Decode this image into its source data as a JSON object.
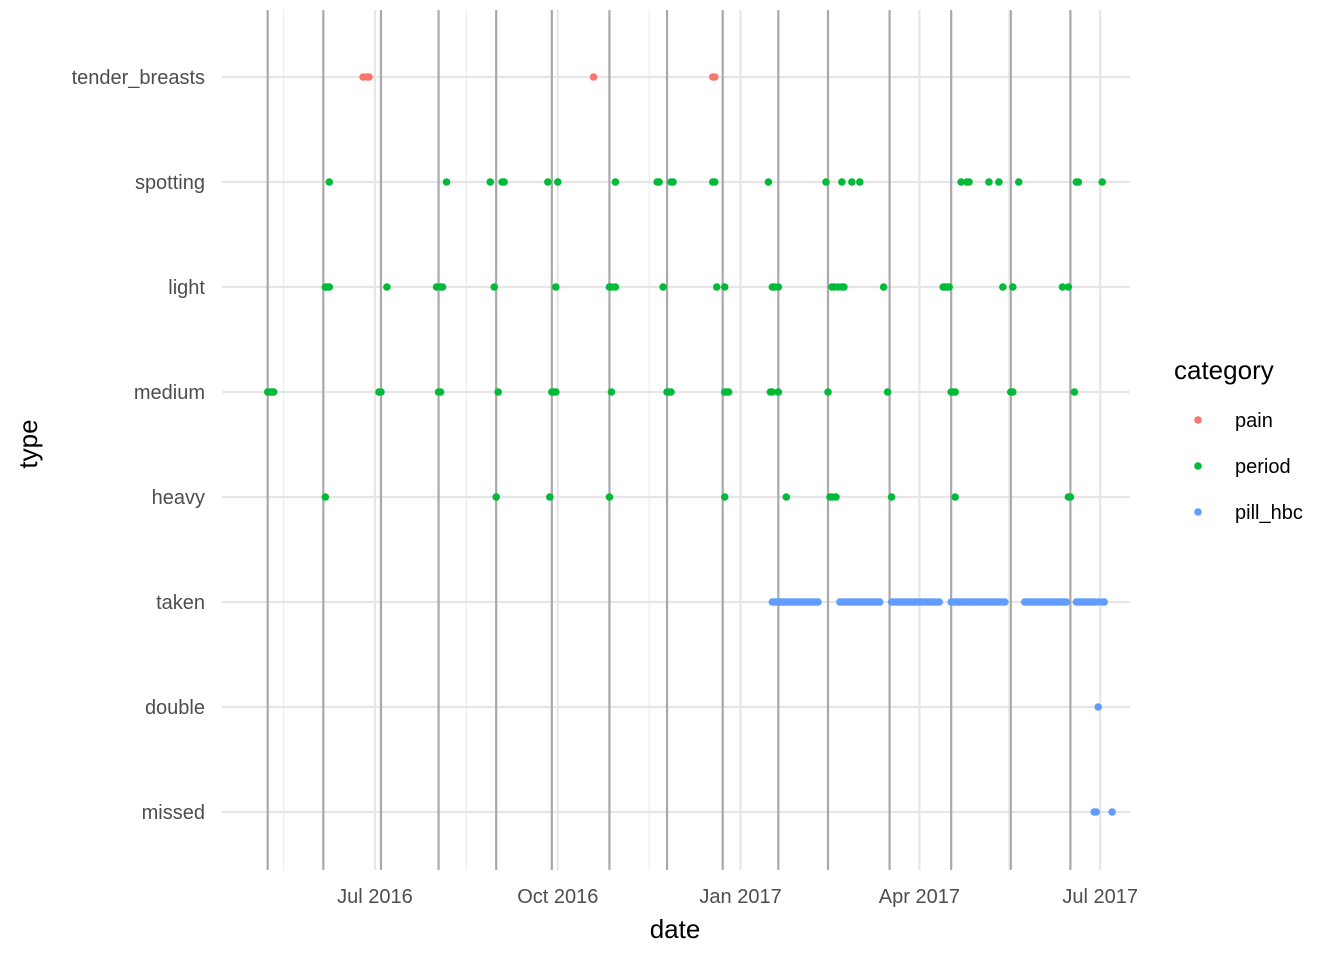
{
  "chart_data": {
    "type": "scatter",
    "xlabel": "date",
    "ylabel": "type",
    "x_ticks": [
      "Jul 2016",
      "Oct 2016",
      "Jan 2017",
      "Apr 2017",
      "Jul 2017"
    ],
    "xlim": [
      "2016-04-15",
      "2017-07-16"
    ],
    "y_categories": [
      "missed",
      "double",
      "taken",
      "heavy",
      "medium",
      "light",
      "spotting",
      "tender_breasts"
    ],
    "grid": true,
    "legend": {
      "title": "category",
      "position": "right",
      "items": [
        {
          "name": "pain",
          "color": "#F8766D"
        },
        {
          "name": "period",
          "color": "#00BA38"
        },
        {
          "name": "pill_hbc",
          "color": "#619CFF"
        }
      ]
    },
    "period_start_lines": [
      "2016-05-08",
      "2016-06-05",
      "2016-07-04",
      "2016-08-02",
      "2016-08-31",
      "2016-09-28",
      "2016-10-27",
      "2016-11-25",
      "2016-12-23",
      "2017-01-20",
      "2017-02-14",
      "2017-03-17",
      "2017-04-17",
      "2017-05-17",
      "2017-06-16"
    ],
    "series": [
      {
        "name": "pain",
        "points": [
          {
            "x": "2016-06-25",
            "y": "tender_breasts"
          },
          {
            "x": "2016-06-27",
            "y": "tender_breasts"
          },
          {
            "x": "2016-06-28",
            "y": "tender_breasts"
          },
          {
            "x": "2016-10-19",
            "y": "tender_breasts"
          },
          {
            "x": "2016-12-18",
            "y": "tender_breasts"
          },
          {
            "x": "2016-12-19",
            "y": "tender_breasts"
          }
        ]
      },
      {
        "name": "period",
        "points": [
          {
            "x": "2016-06-08",
            "y": "spotting"
          },
          {
            "x": "2016-08-06",
            "y": "spotting"
          },
          {
            "x": "2016-08-28",
            "y": "spotting"
          },
          {
            "x": "2016-09-03",
            "y": "spotting"
          },
          {
            "x": "2016-09-04",
            "y": "spotting"
          },
          {
            "x": "2016-09-26",
            "y": "spotting"
          },
          {
            "x": "2016-10-01",
            "y": "spotting"
          },
          {
            "x": "2016-10-30",
            "y": "spotting"
          },
          {
            "x": "2016-11-20",
            "y": "spotting"
          },
          {
            "x": "2016-11-21",
            "y": "spotting"
          },
          {
            "x": "2016-11-27",
            "y": "spotting"
          },
          {
            "x": "2016-11-28",
            "y": "spotting"
          },
          {
            "x": "2016-12-18",
            "y": "spotting"
          },
          {
            "x": "2016-12-19",
            "y": "spotting"
          },
          {
            "x": "2017-01-15",
            "y": "spotting"
          },
          {
            "x": "2017-02-13",
            "y": "spotting"
          },
          {
            "x": "2017-02-21",
            "y": "spotting"
          },
          {
            "x": "2017-02-26",
            "y": "spotting"
          },
          {
            "x": "2017-03-02",
            "y": "spotting"
          },
          {
            "x": "2017-04-22",
            "y": "spotting"
          },
          {
            "x": "2017-04-25",
            "y": "spotting"
          },
          {
            "x": "2017-04-26",
            "y": "spotting"
          },
          {
            "x": "2017-05-06",
            "y": "spotting"
          },
          {
            "x": "2017-05-11",
            "y": "spotting"
          },
          {
            "x": "2017-05-21",
            "y": "spotting"
          },
          {
            "x": "2017-06-19",
            "y": "spotting"
          },
          {
            "x": "2017-06-20",
            "y": "spotting"
          },
          {
            "x": "2017-07-02",
            "y": "spotting"
          },
          {
            "x": "2016-06-06",
            "y": "light"
          },
          {
            "x": "2016-06-07",
            "y": "light"
          },
          {
            "x": "2016-06-08",
            "y": "light"
          },
          {
            "x": "2016-07-07",
            "y": "light"
          },
          {
            "x": "2016-08-01",
            "y": "light"
          },
          {
            "x": "2016-08-03",
            "y": "light"
          },
          {
            "x": "2016-08-04",
            "y": "light"
          },
          {
            "x": "2016-08-30",
            "y": "light"
          },
          {
            "x": "2016-09-30",
            "y": "light"
          },
          {
            "x": "2016-10-27",
            "y": "light"
          },
          {
            "x": "2016-10-28",
            "y": "light"
          },
          {
            "x": "2016-10-30",
            "y": "light"
          },
          {
            "x": "2016-11-23",
            "y": "light"
          },
          {
            "x": "2016-12-20",
            "y": "light"
          },
          {
            "x": "2016-12-24",
            "y": "light"
          },
          {
            "x": "2017-01-17",
            "y": "light"
          },
          {
            "x": "2017-01-18",
            "y": "light"
          },
          {
            "x": "2017-01-20",
            "y": "light"
          },
          {
            "x": "2017-02-16",
            "y": "light"
          },
          {
            "x": "2017-02-17",
            "y": "light"
          },
          {
            "x": "2017-02-19",
            "y": "light"
          },
          {
            "x": "2017-02-21",
            "y": "light"
          },
          {
            "x": "2017-02-22",
            "y": "light"
          },
          {
            "x": "2017-03-14",
            "y": "light"
          },
          {
            "x": "2017-04-13",
            "y": "light"
          },
          {
            "x": "2017-04-14",
            "y": "light"
          },
          {
            "x": "2017-04-15",
            "y": "light"
          },
          {
            "x": "2017-04-16",
            "y": "light"
          },
          {
            "x": "2017-05-13",
            "y": "light"
          },
          {
            "x": "2017-05-18",
            "y": "light"
          },
          {
            "x": "2017-06-12",
            "y": "light"
          },
          {
            "x": "2017-06-15",
            "y": "light"
          },
          {
            "x": "2016-05-08",
            "y": "medium"
          },
          {
            "x": "2016-05-09",
            "y": "medium"
          },
          {
            "x": "2016-05-10",
            "y": "medium"
          },
          {
            "x": "2016-05-11",
            "y": "medium"
          },
          {
            "x": "2016-07-03",
            "y": "medium"
          },
          {
            "x": "2016-07-04",
            "y": "medium"
          },
          {
            "x": "2016-08-02",
            "y": "medium"
          },
          {
            "x": "2016-08-03",
            "y": "medium"
          },
          {
            "x": "2016-09-01",
            "y": "medium"
          },
          {
            "x": "2016-09-28",
            "y": "medium"
          },
          {
            "x": "2016-09-29",
            "y": "medium"
          },
          {
            "x": "2016-09-30",
            "y": "medium"
          },
          {
            "x": "2016-10-28",
            "y": "medium"
          },
          {
            "x": "2016-11-25",
            "y": "medium"
          },
          {
            "x": "2016-11-26",
            "y": "medium"
          },
          {
            "x": "2016-11-27",
            "y": "medium"
          },
          {
            "x": "2016-12-24",
            "y": "medium"
          },
          {
            "x": "2016-12-25",
            "y": "medium"
          },
          {
            "x": "2016-12-26",
            "y": "medium"
          },
          {
            "x": "2017-01-16",
            "y": "medium"
          },
          {
            "x": "2017-01-17",
            "y": "medium"
          },
          {
            "x": "2017-01-20",
            "y": "medium"
          },
          {
            "x": "2017-02-14",
            "y": "medium"
          },
          {
            "x": "2017-03-16",
            "y": "medium"
          },
          {
            "x": "2017-04-17",
            "y": "medium"
          },
          {
            "x": "2017-04-18",
            "y": "medium"
          },
          {
            "x": "2017-04-19",
            "y": "medium"
          },
          {
            "x": "2017-05-17",
            "y": "medium"
          },
          {
            "x": "2017-05-18",
            "y": "medium"
          },
          {
            "x": "2017-06-18",
            "y": "medium"
          },
          {
            "x": "2016-06-06",
            "y": "heavy"
          },
          {
            "x": "2016-08-31",
            "y": "heavy"
          },
          {
            "x": "2016-09-27",
            "y": "heavy"
          },
          {
            "x": "2016-10-27",
            "y": "heavy"
          },
          {
            "x": "2016-12-24",
            "y": "heavy"
          },
          {
            "x": "2017-02-15",
            "y": "heavy"
          },
          {
            "x": "2017-02-16",
            "y": "heavy"
          },
          {
            "x": "2017-02-18",
            "y": "heavy"
          },
          {
            "x": "2017-03-18",
            "y": "heavy"
          },
          {
            "x": "2017-04-19",
            "y": "heavy"
          },
          {
            "x": "2017-06-15",
            "y": "heavy"
          },
          {
            "x": "2017-06-16",
            "y": "heavy"
          },
          {
            "x": "2017-01-24",
            "y": "heavy"
          }
        ]
      },
      {
        "name": "pill_hbc",
        "points": [
          {
            "x": "2017-01-17",
            "y": "taken",
            "to": "2017-02-09"
          },
          {
            "x": "2017-02-20",
            "y": "taken",
            "to": "2017-03-12"
          },
          {
            "x": "2017-03-18",
            "y": "taken",
            "to": "2017-04-11"
          },
          {
            "x": "2017-04-17",
            "y": "taken",
            "to": "2017-05-14"
          },
          {
            "x": "2017-05-24",
            "y": "taken",
            "to": "2017-06-14"
          },
          {
            "x": "2017-06-19",
            "y": "taken",
            "to": "2017-06-28"
          },
          {
            "x": "2017-06-30",
            "y": "taken"
          },
          {
            "x": "2017-07-02",
            "y": "taken"
          },
          {
            "x": "2017-07-03",
            "y": "taken"
          },
          {
            "x": "2017-06-30",
            "y": "double"
          },
          {
            "x": "2017-06-28",
            "y": "missed"
          },
          {
            "x": "2017-06-29",
            "y": "missed"
          },
          {
            "x": "2017-07-07",
            "y": "missed"
          }
        ]
      }
    ]
  }
}
